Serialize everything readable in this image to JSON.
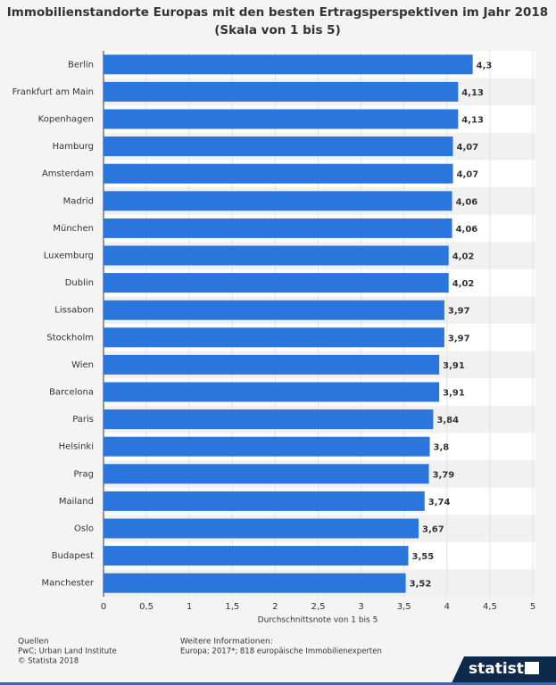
{
  "chart_data": {
    "type": "bar",
    "orientation": "horizontal",
    "title": "Immobilienstandorte Europas mit den besten Ertragsperspektiven im Jahr 2018",
    "subtitle": "(Skala von 1 bis 5)",
    "x_label": "Durchschnittsnote von 1 bis 5",
    "categories": [
      "Berlin",
      "Frankfurt am Main",
      "Kopenhagen",
      "Hamburg",
      "Amsterdam",
      "Madrid",
      "München",
      "Luxemburg",
      "Dublin",
      "Lissabon",
      "Stockholm",
      "Wien",
      "Barcelona",
      "Paris",
      "Helsinki",
      "Prag",
      "Mailand",
      "Oslo",
      "Budapest",
      "Manchester"
    ],
    "values": [
      4.3,
      4.13,
      4.13,
      4.07,
      4.07,
      4.06,
      4.06,
      4.02,
      4.02,
      3.97,
      3.97,
      3.91,
      3.91,
      3.84,
      3.8,
      3.79,
      3.74,
      3.67,
      3.55,
      3.52
    ],
    "value_labels": [
      "4,3",
      "4,13",
      "4,13",
      "4,07",
      "4,07",
      "4,06",
      "4,06",
      "4,02",
      "4,02",
      "3,97",
      "3,97",
      "3,91",
      "3,91",
      "3,84",
      "3,8",
      "3,79",
      "3,74",
      "3,67",
      "3,55",
      "3,52"
    ],
    "color": "#2a76dd",
    "xlim": [
      0,
      5
    ],
    "xticks": [
      0,
      {
        "value": 0.5,
        "label": "0,5"
      },
      1,
      {
        "value": 1.5,
        "label": "1,5"
      },
      2,
      {
        "value": 2.5,
        "label": "2,5"
      },
      3,
      {
        "value": 3.5,
        "label": "3,5"
      },
      4,
      {
        "value": 4.5,
        "label": "4,5"
      },
      5
    ],
    "grid": true
  },
  "footer": {
    "sources_title": "Quellen",
    "sources": "PwC; Urban Land Institute",
    "copyright": "© Statista 2018",
    "info_title": "Weitere Informationen:",
    "info": "Europa; 2017*; 818 europäische Immobilienexperten",
    "logo": "statista"
  }
}
